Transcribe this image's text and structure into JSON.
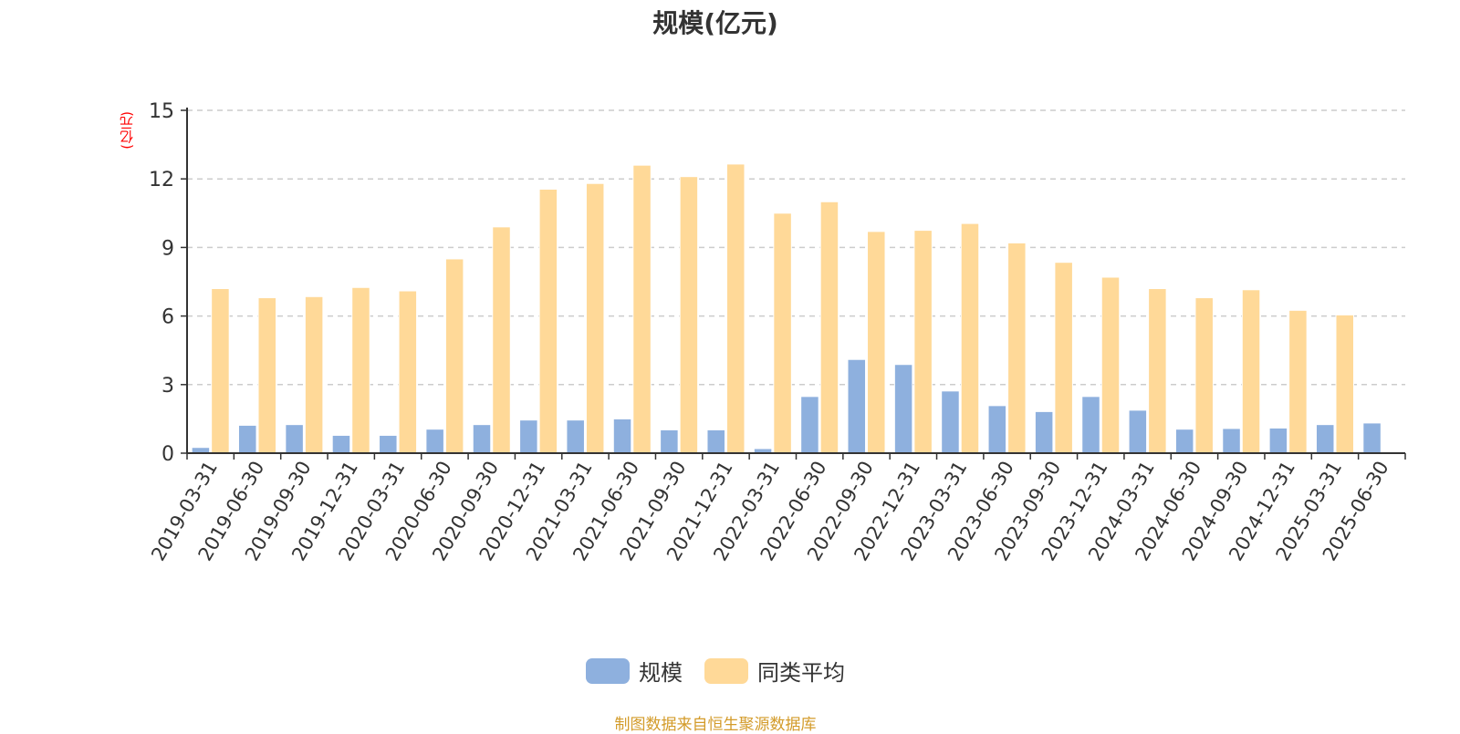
{
  "chart_data": {
    "type": "bar",
    "title": "规模(亿元)",
    "y_unit_label": "(亿元)",
    "ylim": [
      0,
      15
    ],
    "yticks": [
      0,
      3,
      6,
      9,
      12,
      15
    ],
    "grid": true,
    "legend_placement": "bottom-center",
    "categories": [
      "2019-03-31",
      "2019-06-30",
      "2019-09-30",
      "2019-12-31",
      "2020-03-31",
      "2020-06-30",
      "2020-09-30",
      "2020-12-31",
      "2021-03-31",
      "2021-06-30",
      "2021-09-30",
      "2021-12-31",
      "2022-03-31",
      "2022-06-30",
      "2022-09-30",
      "2022-12-31",
      "2023-03-31",
      "2023-06-30",
      "2023-09-30",
      "2023-12-31",
      "2024-03-31",
      "2024-06-30",
      "2024-09-30",
      "2024-12-31",
      "2025-03-31",
      "2025-06-30"
    ],
    "series": [
      {
        "name": "规模",
        "color": "#8eb0de",
        "values": [
          0.25,
          1.22,
          1.25,
          0.78,
          0.78,
          1.05,
          1.25,
          1.45,
          1.45,
          1.5,
          1.02,
          1.02,
          0.2,
          2.48,
          4.1,
          3.88,
          2.72,
          2.08,
          1.82,
          2.48,
          1.88,
          1.05,
          1.08,
          1.1,
          1.25,
          1.32
        ]
      },
      {
        "name": "同类平均",
        "color": "#ffd998",
        "values": [
          7.2,
          6.8,
          6.85,
          7.25,
          7.1,
          8.5,
          9.9,
          11.55,
          11.8,
          12.6,
          12.1,
          12.65,
          10.5,
          11.0,
          9.7,
          9.75,
          10.05,
          9.2,
          8.35,
          7.7,
          7.2,
          6.8,
          7.15,
          6.25,
          6.05,
          null
        ]
      }
    ]
  },
  "footer": {
    "source": "制图数据来自恒生聚源数据库"
  }
}
